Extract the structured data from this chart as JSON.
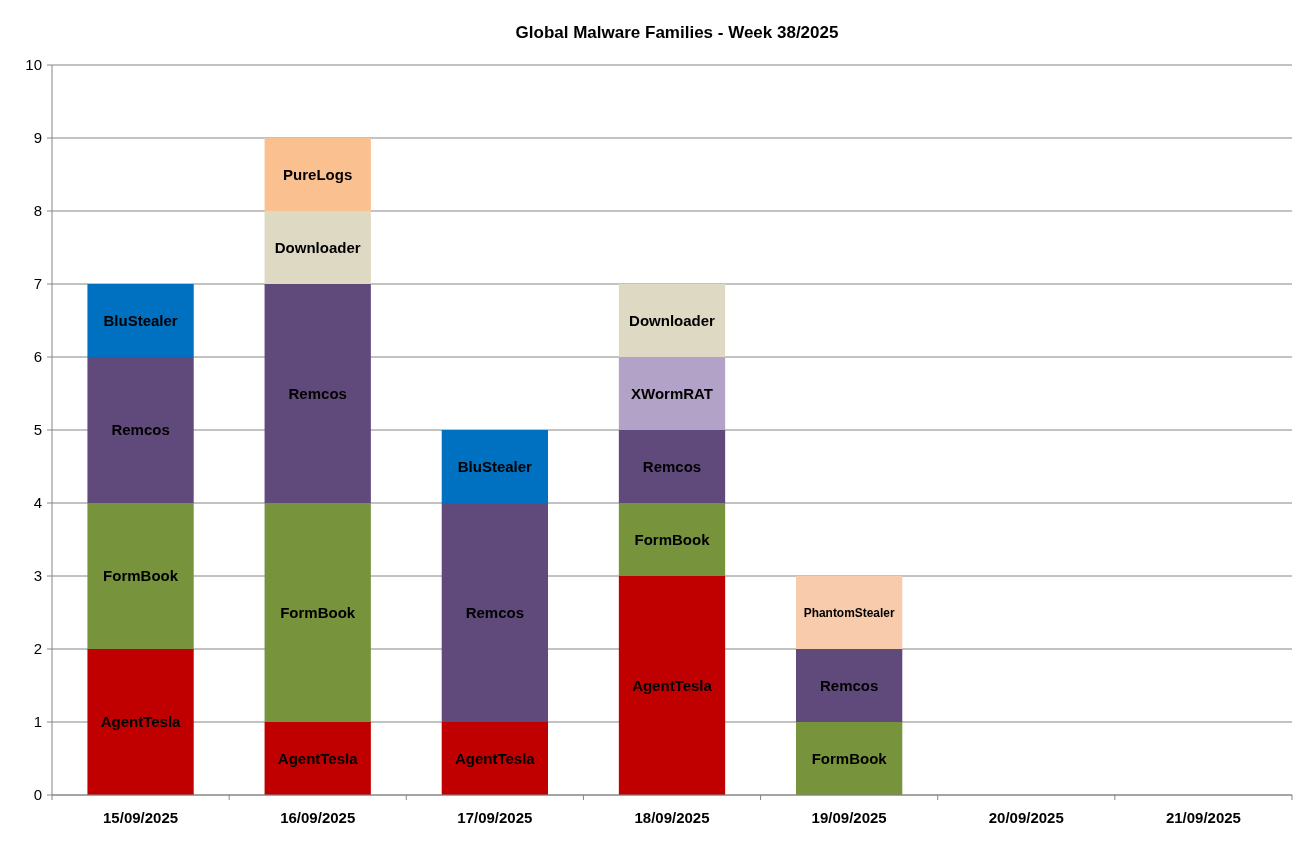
{
  "chart_data": {
    "type": "bar",
    "title": "Global Malware Families - Week 38/2025",
    "stacked": true,
    "grid": "y",
    "categories": [
      "15/09/2025",
      "16/09/2025",
      "17/09/2025",
      "18/09/2025",
      "19/09/2025",
      "20/09/2025",
      "21/09/2025"
    ],
    "ylim": [
      0,
      10
    ],
    "yticks": [
      0,
      1,
      2,
      3,
      4,
      5,
      6,
      7,
      8,
      9,
      10
    ],
    "series": [
      {
        "name": "AgentTesla",
        "color": "#c00000",
        "values": [
          2,
          1,
          1,
          3,
          null,
          null,
          null
        ]
      },
      {
        "name": "FormBook",
        "color": "#77933c",
        "values": [
          2,
          3,
          null,
          1,
          1,
          null,
          null
        ]
      },
      {
        "name": "Remcos",
        "color": "#604a7b",
        "values": [
          2,
          3,
          3,
          1,
          1,
          null,
          null
        ]
      },
      {
        "name": "BluStealer",
        "color": "#0070c0",
        "values": [
          1,
          null,
          1,
          null,
          null,
          null,
          null
        ]
      },
      {
        "name": "XWormRAT",
        "color": "#b3a2c7",
        "values": [
          null,
          null,
          null,
          1,
          null,
          null,
          null
        ]
      },
      {
        "name": "Downloader",
        "color": "#ddd9c3",
        "values": [
          null,
          1,
          null,
          1,
          null,
          null,
          null
        ]
      },
      {
        "name": "PureLogs",
        "color": "#fac090",
        "values": [
          null,
          1,
          null,
          null,
          null,
          null,
          null
        ]
      },
      {
        "name": "PhantomStealer",
        "color": "#f8cbad",
        "values": [
          null,
          null,
          null,
          null,
          1,
          null,
          null
        ]
      }
    ]
  }
}
